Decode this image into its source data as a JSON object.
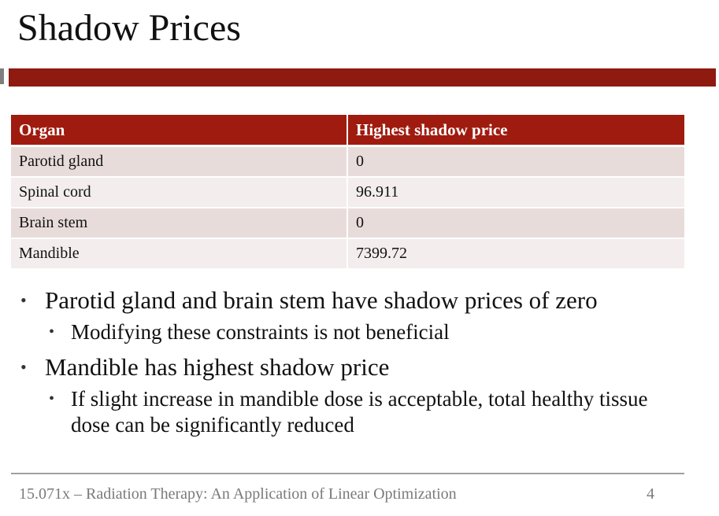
{
  "slide": {
    "title": "Shadow Prices"
  },
  "table": {
    "headers": [
      "Organ",
      "Highest shadow price"
    ],
    "rows": [
      [
        "Parotid gland",
        "0"
      ],
      [
        "Spinal cord",
        "96.911"
      ],
      [
        "Brain stem",
        "0"
      ],
      [
        "Mandible",
        "7399.72"
      ]
    ]
  },
  "bullets": [
    {
      "text": "Parotid gland and brain stem have shadow prices of zero",
      "sub": [
        "Modifying these constraints is not beneficial"
      ]
    },
    {
      "text": "Mandible has highest shadow price",
      "sub": [
        "If slight increase in mandible dose is acceptable, total healthy tissue dose can be significantly reduced"
      ]
    }
  ],
  "bullet_glyph": "•",
  "footer": {
    "text": "15.071x – Radiation Therapy: An Application of Linear Optimization",
    "page_number": "4"
  },
  "colors": {
    "accent_bar": "#8e1a10",
    "table_header": "#a01b0f",
    "row_odd": "#e8dcdb",
    "row_even": "#f3eded"
  }
}
